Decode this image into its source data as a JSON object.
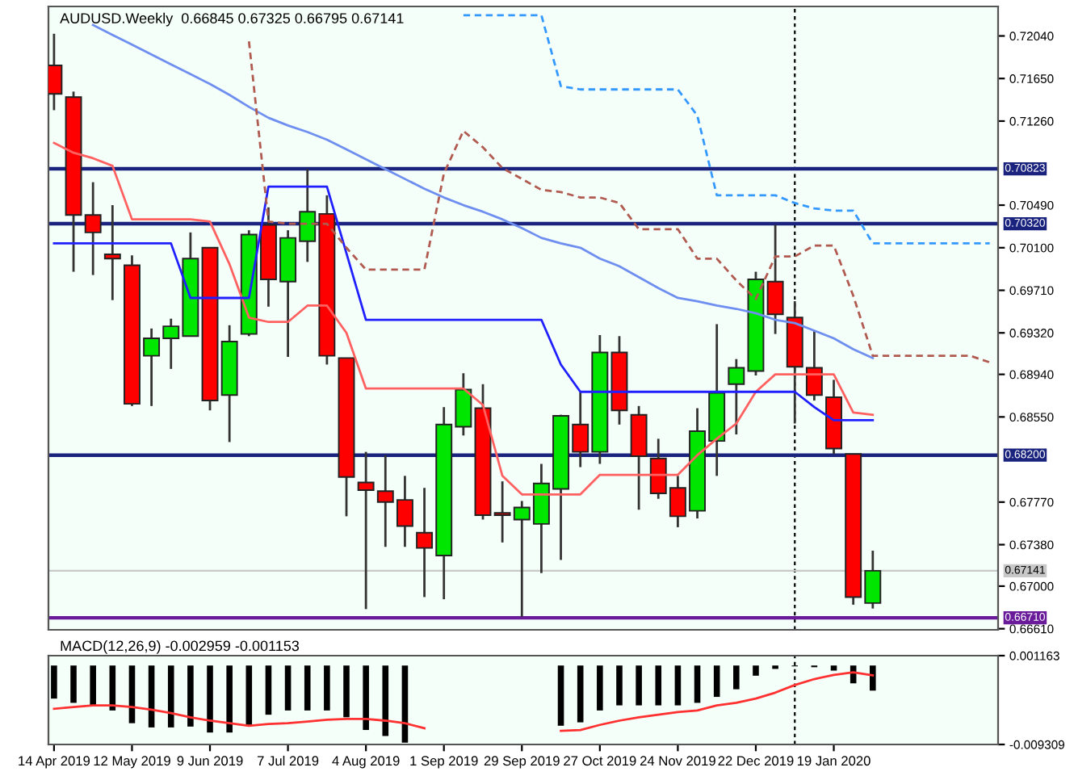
{
  "chart_data": [
    {
      "type": "candlestick",
      "title": "AUDUSD.Weekly  0.66845 0.67325 0.66795 0.67141",
      "x": [
        "2019-04-14",
        "2019-04-21",
        "2019-04-28",
        "2019-05-05",
        "2019-05-12",
        "2019-05-19",
        "2019-05-26",
        "2019-06-02",
        "2019-06-09",
        "2019-06-16",
        "2019-06-23",
        "2019-06-30",
        "2019-07-07",
        "2019-07-14",
        "2019-07-21",
        "2019-07-28",
        "2019-08-04",
        "2019-08-11",
        "2019-08-18",
        "2019-08-25",
        "2019-09-01",
        "2019-09-08",
        "2019-09-15",
        "2019-09-22",
        "2019-09-29",
        "2019-10-06",
        "2019-10-13",
        "2019-10-20",
        "2019-10-27",
        "2019-11-03",
        "2019-11-10",
        "2019-11-17",
        "2019-11-24",
        "2019-12-01",
        "2019-12-08",
        "2019-12-15",
        "2019-12-22",
        "2019-12-29",
        "2020-01-05",
        "2020-01-12",
        "2020-01-19",
        "2020-01-26",
        "2020-02-02"
      ],
      "ohlc": [
        [
          0.7177,
          0.7206,
          0.7136,
          0.7151
        ],
        [
          0.7148,
          0.7153,
          0.6988,
          0.704
        ],
        [
          0.704,
          0.707,
          0.6985,
          0.7024
        ],
        [
          0.7004,
          0.7049,
          0.6962,
          0.7
        ],
        [
          0.6994,
          0.7003,
          0.6865,
          0.6867
        ],
        [
          0.6911,
          0.6936,
          0.6865,
          0.6927
        ],
        [
          0.6927,
          0.6945,
          0.6899,
          0.6938
        ],
        [
          0.6929,
          0.7024,
          0.6929,
          0.7
        ],
        [
          0.701,
          0.701,
          0.6861,
          0.687
        ],
        [
          0.6875,
          0.6939,
          0.6832,
          0.6924
        ],
        [
          0.6931,
          0.7026,
          0.6929,
          0.7022
        ],
        [
          0.7031,
          0.7047,
          0.6956,
          0.6981
        ],
        [
          0.6979,
          0.7026,
          0.691,
          0.7019
        ],
        [
          0.7016,
          0.7082,
          0.6997,
          0.7043
        ],
        [
          0.7041,
          0.7058,
          0.6903,
          0.6911
        ],
        [
          0.6909,
          0.6909,
          0.6764,
          0.68
        ],
        [
          0.6795,
          0.6823,
          0.6679,
          0.6788
        ],
        [
          0.6787,
          0.682,
          0.6736,
          0.6777
        ],
        [
          0.6779,
          0.6801,
          0.6736,
          0.6755
        ],
        [
          0.6749,
          0.679,
          0.669,
          0.6735
        ],
        [
          0.6728,
          0.6864,
          0.6688,
          0.6848
        ],
        [
          0.6846,
          0.6895,
          0.6838,
          0.688
        ],
        [
          0.6863,
          0.6885,
          0.6761,
          0.6765
        ],
        [
          0.6767,
          0.6796,
          0.674,
          0.6765
        ],
        [
          0.6761,
          0.6778,
          0.6672,
          0.6772
        ],
        [
          0.6757,
          0.6812,
          0.6712,
          0.6794
        ],
        [
          0.6789,
          0.6857,
          0.6724,
          0.6856
        ],
        [
          0.6848,
          0.6878,
          0.6809,
          0.6823
        ],
        [
          0.6823,
          0.693,
          0.6812,
          0.6914
        ],
        [
          0.6914,
          0.6929,
          0.6848,
          0.6861
        ],
        [
          0.6857,
          0.6865,
          0.677,
          0.6819
        ],
        [
          0.6817,
          0.6835,
          0.678,
          0.6785
        ],
        [
          0.679,
          0.6801,
          0.6754,
          0.6764
        ],
        [
          0.6769,
          0.6863,
          0.6762,
          0.6842
        ],
        [
          0.6833,
          0.694,
          0.6801,
          0.6877
        ],
        [
          0.6885,
          0.6908,
          0.6839,
          0.69
        ],
        [
          0.6897,
          0.6988,
          0.6893,
          0.6981
        ],
        [
          0.6979,
          0.7031,
          0.6931,
          0.6949
        ],
        [
          0.6946,
          0.6961,
          0.6849,
          0.6901
        ],
        [
          0.69,
          0.6934,
          0.687,
          0.6875
        ],
        [
          0.6873,
          0.6889,
          0.6821,
          0.6826
        ],
        [
          0.6821,
          0.6821,
          0.6683,
          0.669
        ],
        [
          0.66845,
          0.67325,
          0.66795,
          0.67141
        ]
      ],
      "colors": [
        "#ff0000",
        "#ff0000",
        "#ff0000",
        "#ff0000",
        "#ff0000",
        "#00e600",
        "#00e600",
        "#00e600",
        "#ff0000",
        "#00e600",
        "#00e600",
        "#ff0000",
        "#00e600",
        "#00e600",
        "#ff0000",
        "#ff0000",
        "#ff0000",
        "#ff0000",
        "#ff0000",
        "#ff0000",
        "#00e600",
        "#00e600",
        "#ff0000",
        "#ff0000",
        "#00e600",
        "#00e600",
        "#00e600",
        "#ff0000",
        "#00e600",
        "#ff0000",
        "#ff0000",
        "#ff0000",
        "#ff0000",
        "#00e600",
        "#00e600",
        "#00e600",
        "#00e600",
        "#ff0000",
        "#ff0000",
        "#ff0000",
        "#ff0000",
        "#ff0000",
        "#00e600"
      ],
      "series": [
        {
          "type": "line",
          "color": "#ff6060",
          "values": [
            0.7106,
            0.7097,
            0.7092,
            0.7085,
            0.7036,
            0.7036,
            0.7036,
            0.7036,
            0.7034,
            0.6995,
            0.6946,
            0.6942,
            0.6942,
            0.6957,
            0.6957,
            0.6932,
            0.6881,
            0.6881,
            0.6881,
            0.6881,
            0.6881,
            0.6881,
            0.6866,
            0.6801,
            0.6784,
            0.6784,
            0.6784,
            0.6784,
            0.6802,
            0.6802,
            0.6802,
            0.6802,
            0.6802,
            0.682,
            0.6835,
            0.6849,
            0.6878,
            0.6894,
            0.6894,
            0.6894,
            0.6894,
            0.6859,
            0.6857
          ]
        },
        {
          "type": "line",
          "color": "#2020ff",
          "values": [
            0.7014,
            0.7014,
            0.7014,
            0.7014,
            0.7014,
            0.7014,
            0.7014,
            0.6964,
            0.6964,
            0.6964,
            0.6964,
            0.7066,
            0.7066,
            0.7066,
            0.7066,
            0.7005,
            0.6944,
            0.6944,
            0.6944,
            0.6944,
            0.6944,
            0.6944,
            0.6944,
            0.6944,
            0.6944,
            0.6944,
            0.6903,
            0.6878,
            0.6878,
            0.6878,
            0.6878,
            0.6878,
            0.6878,
            0.6878,
            0.6878,
            0.6878,
            0.6878,
            0.6878,
            0.6878,
            0.6864,
            0.6852,
            0.6852,
            0.6852
          ]
        },
        {
          "type": "line",
          "color": "#6f8ff0",
          "values": [
            null,
            null,
            0.7214,
            0.7205,
            0.7196,
            0.7187,
            0.7178,
            0.7169,
            0.716,
            0.715,
            0.7139,
            0.7129,
            0.7122,
            0.7116,
            0.7109,
            0.71,
            0.7091,
            0.7082,
            0.7073,
            0.7064,
            0.7056,
            0.7049,
            0.7043,
            0.7036,
            0.7028,
            0.7019,
            0.7014,
            0.701,
            0.7,
            0.6993,
            0.6983,
            0.6973,
            0.6964,
            0.6961,
            0.6957,
            0.6954,
            0.695,
            0.6944,
            0.6941,
            0.6934,
            0.6927,
            0.6917,
            0.6909
          ]
        },
        {
          "type": "line",
          "color": "#3399ff",
          "line_style": "dashed",
          "x": [
            "2019-09-08",
            "2019-09-15",
            "2019-09-22",
            "2019-09-29",
            "2019-10-06",
            "2019-10-13",
            "2019-10-20",
            "2019-10-27",
            "2019-11-03",
            "2019-11-10",
            "2019-11-17",
            "2019-11-24",
            "2019-12-01",
            "2019-12-08",
            "2019-12-15",
            "2019-12-22",
            "2019-12-29",
            "2020-01-05",
            "2020-01-12",
            "2020-01-19",
            "2020-01-26",
            "2020-02-02",
            "2020-02-09",
            "2020-02-16",
            "2020-02-23",
            "2020-03-01",
            "2020-03-08",
            "2020-03-15"
          ],
          "values": [
            0.7223,
            0.7223,
            0.7223,
            0.7223,
            0.7223,
            0.7158,
            0.7155,
            0.7155,
            0.7155,
            0.7155,
            0.7155,
            0.7155,
            0.7131,
            0.7058,
            0.7058,
            0.7058,
            0.7058,
            0.7051,
            0.7046,
            0.7044,
            0.7044,
            0.7014,
            0.7014,
            0.7014,
            0.7014,
            0.7014,
            0.7014,
            0.7014
          ]
        },
        {
          "type": "line",
          "color": "#b05a50",
          "line_style": "dashed",
          "x": [
            "2019-06-23",
            "2019-06-30",
            "2019-07-07",
            "2019-07-14",
            "2019-07-21",
            "2019-07-28",
            "2019-08-04",
            "2019-08-11",
            "2019-08-18",
            "2019-08-25",
            "2019-09-01",
            "2019-09-08",
            "2019-09-15",
            "2019-09-22",
            "2019-09-29",
            "2019-10-06",
            "2019-10-13",
            "2019-10-20",
            "2019-10-27",
            "2019-11-03",
            "2019-11-10",
            "2019-11-17",
            "2019-11-24",
            "2019-12-01",
            "2019-12-08",
            "2019-12-15",
            "2019-12-22",
            "2019-12-29",
            "2020-01-05",
            "2020-01-12",
            "2020-01-19",
            "2020-01-26",
            "2020-02-02",
            "2020-02-09",
            "2020-02-16",
            "2020-02-23",
            "2020-03-01",
            "2020-03-08",
            "2020-03-15"
          ],
          "values": [
            0.7199,
            0.7034,
            0.7032,
            0.7032,
            0.7032,
            0.701,
            0.699,
            0.699,
            0.699,
            0.699,
            0.7078,
            0.7117,
            0.7102,
            0.7083,
            0.7073,
            0.7063,
            0.7061,
            0.7056,
            0.7056,
            0.7051,
            0.7027,
            0.7027,
            0.7027,
            0.7,
            0.7,
            0.698,
            0.6963,
            0.7002,
            0.7002,
            0.7012,
            0.7012,
            0.6966,
            0.6911,
            0.6911,
            0.6911,
            0.6911,
            0.6911,
            0.6911,
            0.6905
          ]
        }
      ],
      "ref_lines": [
        {
          "axis": "y",
          "value": 0.70823,
          "label": "0.70823",
          "color": "#1a237e"
        },
        {
          "axis": "y",
          "value": 0.7032,
          "label": "0.70320",
          "color": "#1a237e"
        },
        {
          "axis": "y",
          "value": 0.682,
          "label": "0.68200",
          "color": "#1a237e"
        },
        {
          "axis": "y",
          "value": 0.6671,
          "label": "0.66710",
          "color": "#6a1b9a"
        },
        {
          "axis": "y",
          "value": 0.67141,
          "label": "0.67141",
          "color": "#c8c8c8"
        },
        {
          "axis": "x",
          "value": "2020-01-05",
          "color": "#000000",
          "line_style": "dotted"
        }
      ],
      "xlim": [
        "2019-04-12",
        "2020-03-18"
      ],
      "ylim": [
        0.666,
        0.7231
      ],
      "yticks": [
        {
          "value": 0.7204,
          "label": "0.72040"
        },
        {
          "value": 0.7165,
          "label": "0.71650"
        },
        {
          "value": 0.7126,
          "label": "0.71260"
        },
        {
          "value": 0.7049,
          "label": "0.70490"
        },
        {
          "value": 0.701,
          "label": "0.70100"
        },
        {
          "value": 0.6971,
          "label": "0.69710"
        },
        {
          "value": 0.6932,
          "label": "0.69320"
        },
        {
          "value": 0.6894,
          "label": "0.68940"
        },
        {
          "value": 0.6855,
          "label": "0.68550"
        },
        {
          "value": 0.6777,
          "label": "0.67770"
        },
        {
          "value": 0.6738,
          "label": "0.67380"
        },
        {
          "value": 0.67,
          "label": "0.67000"
        },
        {
          "value": 0.6661,
          "label": "0.66610"
        }
      ],
      "tick_labels": "y",
      "grid": false,
      "legend": false
    },
    {
      "type": "bar",
      "title": "MACD(12,26,9) -0.002959 -0.001153",
      "x": [
        "2019-04-14",
        "2019-04-21",
        "2019-04-28",
        "2019-05-05",
        "2019-05-12",
        "2019-05-19",
        "2019-05-26",
        "2019-06-02",
        "2019-06-09",
        "2019-06-16",
        "2019-06-23",
        "2019-06-30",
        "2019-07-07",
        "2019-07-14",
        "2019-07-21",
        "2019-07-28",
        "2019-08-04",
        "2019-08-11",
        "2019-08-18",
        "2019-08-25",
        "2019-09-01",
        "2019-09-08",
        "2019-09-15",
        "2019-09-22",
        "2019-09-29",
        "2019-10-06",
        "2019-10-13",
        "2019-10-20",
        "2019-10-27",
        "2019-11-03",
        "2019-11-10",
        "2019-11-17",
        "2019-11-24",
        "2019-12-01",
        "2019-12-08",
        "2019-12-15",
        "2019-12-22",
        "2019-12-29",
        "2020-01-05",
        "2020-01-12",
        "2020-01-19",
        "2020-01-26",
        "2020-02-02"
      ],
      "series": [
        {
          "type": "bar",
          "color": "#000000",
          "values": [
            -0.0039,
            -0.0044,
            -0.0047,
            -0.0053,
            -0.0068,
            -0.0073,
            -0.0073,
            -0.0072,
            -0.0079,
            -0.0079,
            -0.007,
            -0.0058,
            -0.0053,
            -0.0053,
            -0.0053,
            -0.0061,
            -0.0076,
            -0.0083,
            -0.0091,
            null,
            null,
            null,
            null,
            null,
            null,
            null,
            -0.0071,
            -0.0067,
            -0.0053,
            -0.0047,
            -0.0047,
            -0.0047,
            -0.0047,
            -0.0044,
            -0.0037,
            -0.0028,
            -0.0012,
            -0.0004,
            -0.0001,
            -0.0002,
            -0.0006,
            -0.0021,
            -0.002959
          ]
        },
        {
          "type": "line",
          "color": "#ff3030",
          "values": [
            -0.0051,
            -0.0049,
            -0.0047,
            -0.0047,
            -0.0049,
            -0.0052,
            -0.0056,
            -0.0061,
            -0.0065,
            -0.0068,
            -0.0071,
            -0.0069,
            -0.0068,
            -0.0066,
            -0.0064,
            -0.0063,
            -0.0063,
            -0.0065,
            -0.0068,
            -0.0074,
            null,
            null,
            null,
            null,
            null,
            null,
            -0.0077,
            -0.0076,
            -0.007,
            -0.0065,
            -0.0061,
            -0.0058,
            -0.0055,
            -0.0053,
            -0.0047,
            -0.0044,
            -0.0039,
            -0.0032,
            -0.0023,
            -0.0016,
            -0.0011,
            -0.0008,
            -0.001153
          ]
        }
      ],
      "ref_lines": [
        {
          "axis": "x",
          "value": "2020-01-05",
          "color": "#000000",
          "line_style": "dotted"
        }
      ],
      "xlim": [
        "2019-04-12",
        "2020-03-18"
      ],
      "ylim": [
        -0.009309,
        0.001163
      ],
      "yticks": [
        {
          "value": 0.001163,
          "label": "0.001163"
        },
        {
          "value": -0.009309,
          "label": "-0.009309"
        }
      ],
      "xticks": [
        {
          "value": "2019-04-14",
          "label": "14 Apr 2019"
        },
        {
          "value": "2019-05-12",
          "label": "12 May 2019"
        },
        {
          "value": "2019-06-09",
          "label": "9 Jun 2019"
        },
        {
          "value": "2019-07-07",
          "label": "7 Jul 2019"
        },
        {
          "value": "2019-08-04",
          "label": "4 Aug 2019"
        },
        {
          "value": "2019-09-01",
          "label": "1 Sep 2019"
        },
        {
          "value": "2019-09-29",
          "label": "29 Sep 2019"
        },
        {
          "value": "2019-10-27",
          "label": "27 Oct 2019"
        },
        {
          "value": "2019-11-24",
          "label": "24 Nov 2019"
        },
        {
          "value": "2019-12-22",
          "label": "22 Dec 2019"
        },
        {
          "value": "2020-01-19",
          "label": "19 Jan 2020"
        }
      ],
      "grid": false,
      "legend": false
    }
  ]
}
